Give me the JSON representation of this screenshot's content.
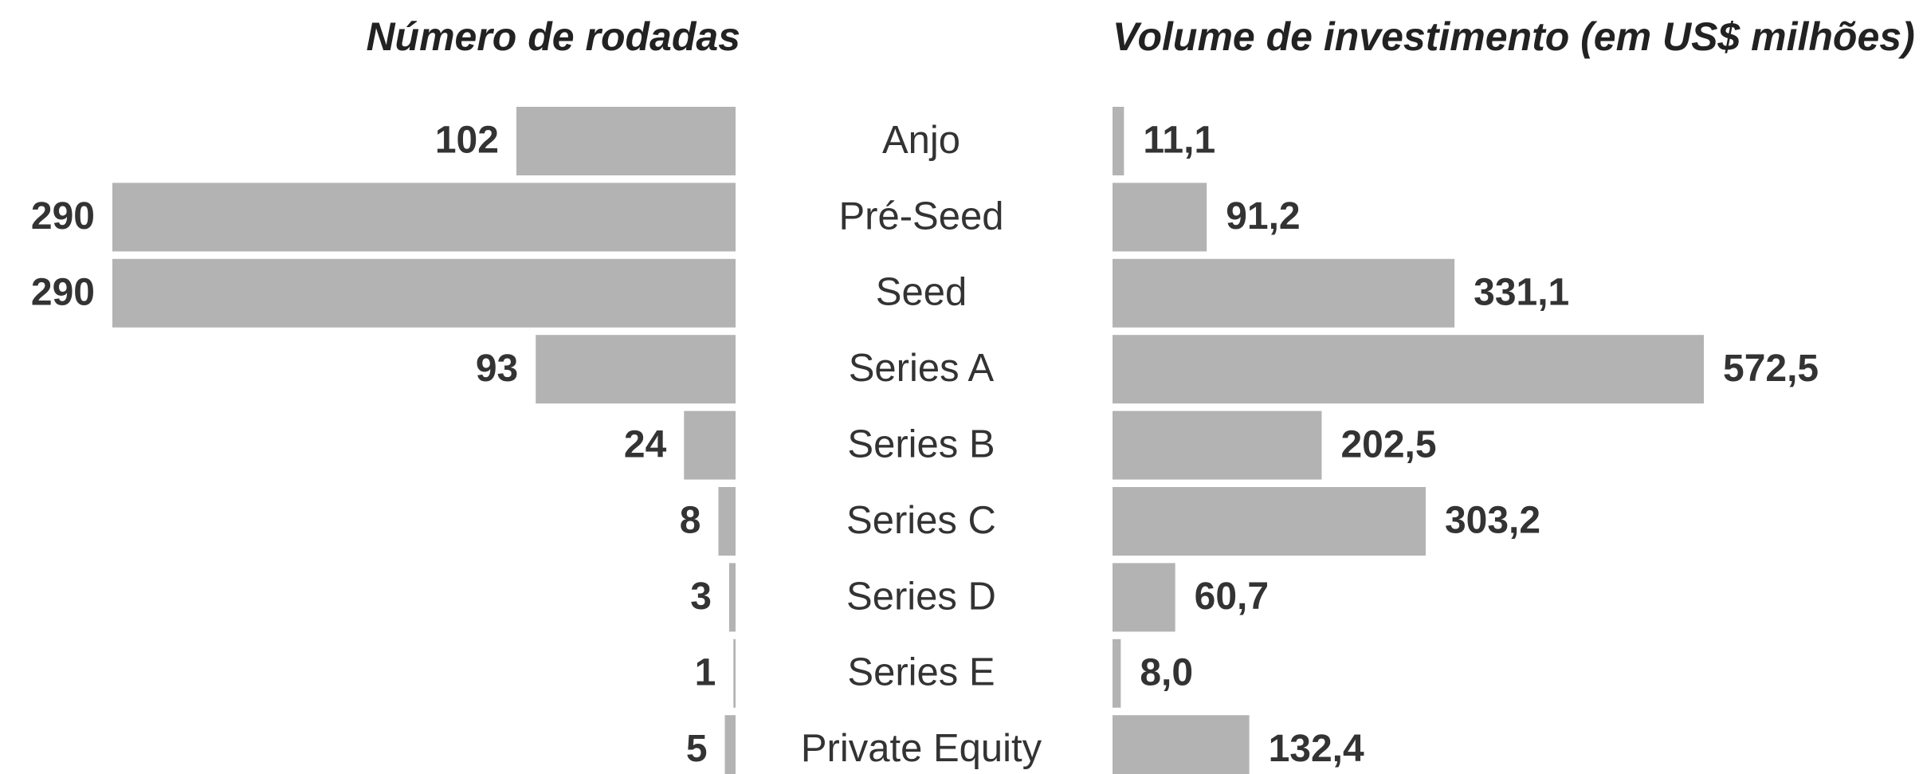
{
  "chart_data": {
    "type": "bar",
    "orientation": "horizontal",
    "layout": "butterfly",
    "color": "#b3b3b3",
    "categories": [
      "Anjo",
      "Pré-Seed",
      "Seed",
      "Series A",
      "Series B",
      "Series C",
      "Series D",
      "Series E",
      "Private Equity"
    ],
    "series": [
      {
        "name": "Número de rodadas",
        "values": [
          102,
          290,
          290,
          93,
          24,
          8,
          3,
          1,
          5
        ]
      },
      {
        "name": "Volume de investimento (em US$ milhões)",
        "values": [
          11.1,
          91.2,
          331.1,
          572.5,
          202.5,
          303.2,
          60.7,
          8.0,
          132.4
        ],
        "value_labels": [
          "11,1",
          "91,2",
          "331,1",
          "572,5",
          "202,5",
          "303,2",
          "60,7",
          "8,0",
          "132,4"
        ]
      }
    ]
  }
}
